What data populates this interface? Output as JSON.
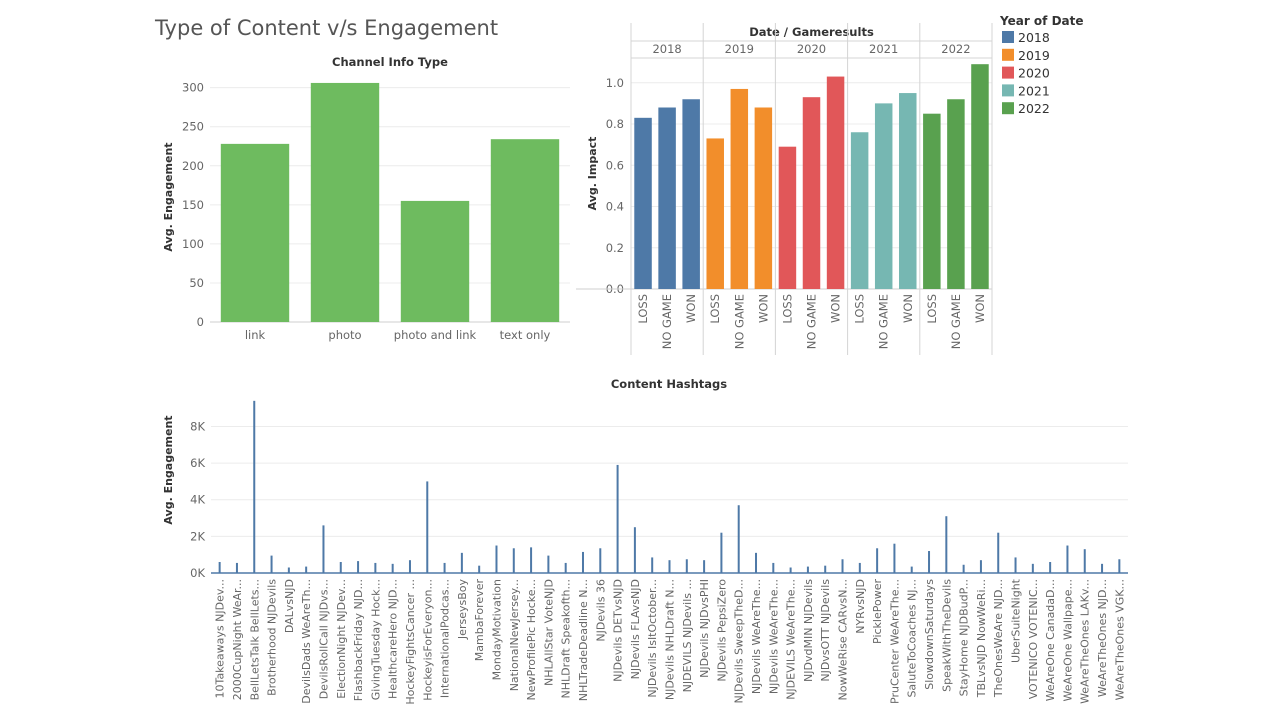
{
  "dashboard": {
    "title": "Type of Content v/s Engagement"
  },
  "chart_data": [
    {
      "id": "channel",
      "type": "bar",
      "title": "Channel Info Type",
      "ylabel": "Avg. Engagement",
      "xlabel": "",
      "categories": [
        "link",
        "photo",
        "photo and link",
        "text only"
      ],
      "values": [
        228,
        306,
        155,
        234
      ],
      "ylim": [
        0,
        320
      ],
      "yticks": [
        0,
        50,
        100,
        150,
        200,
        250,
        300
      ],
      "color": "#6ebb5f",
      "grid": true
    },
    {
      "id": "gameresults",
      "type": "bar",
      "title": "Date / Gameresults",
      "ylabel": "Avg. Impact",
      "ylim": [
        0,
        1.12
      ],
      "yticks": [
        0.0,
        0.2,
        0.4,
        0.6,
        0.8,
        1.0
      ],
      "grid": true,
      "legend_position": "right",
      "legend_title": "Year of Date",
      "groups": [
        {
          "year": "2018",
          "color": "#4e79a7",
          "categories": [
            "LOSS",
            "NO GAME",
            "WON"
          ],
          "values": [
            0.83,
            0.88,
            0.92
          ]
        },
        {
          "year": "2019",
          "color": "#f28e2b",
          "categories": [
            "LOSS",
            "NO GAME",
            "WON"
          ],
          "values": [
            0.73,
            0.97,
            0.88
          ]
        },
        {
          "year": "2020",
          "color": "#e15759",
          "categories": [
            "LOSS",
            "NO GAME",
            "WON"
          ],
          "values": [
            0.69,
            0.93,
            1.03
          ]
        },
        {
          "year": "2021",
          "color": "#76b7b2",
          "categories": [
            "LOSS",
            "NO GAME",
            "WON"
          ],
          "values": [
            0.76,
            0.9,
            0.95
          ]
        },
        {
          "year": "2022",
          "color": "#59a14f",
          "categories": [
            "LOSS",
            "NO GAME",
            "WON"
          ],
          "values": [
            0.85,
            0.92,
            1.09
          ]
        }
      ]
    },
    {
      "id": "hashtags",
      "type": "bar",
      "title": "Content Hashtags",
      "ylabel": "Avg. Engagement",
      "color": "#4e79a7",
      "ylim": [
        0,
        9500
      ],
      "yticks": [
        0,
        2000,
        4000,
        6000,
        8000
      ],
      "ytick_labels": [
        "0K",
        "2K",
        "4K",
        "6K",
        "8K"
      ],
      "grid": true,
      "categories": [
        "10Takeaways NJDev...",
        "2000CupNight WeAr...",
        "BellLetsTalk BellLets...",
        "Brotherhood NJDevils",
        "DALvsNJD",
        "DevilsDads WeAreTh...",
        "DevilsRollCall NJDvs...",
        "ElectionNight NJDev...",
        "FlashbackFriday NJD...",
        "GivingTuesday Hock...",
        "HealthcareHero NJD...",
        "HockeyFightsCancer ...",
        "HockeyisForEveryon...",
        "InternationalPodcas...",
        "JerseysBoy",
        "MambaForever",
        "MondayMotivation",
        "NationalNewJersey...",
        "NewProfilePic Hocke...",
        "NHLAllStar VoteNJD",
        "NHLDraft Speakofth...",
        "NHLTradeDeadline N...",
        "NJDevils 36",
        "NJDevils DETvsNJD",
        "NJDevils FLAvsNJD",
        "NJDevils IsItOctober...",
        "NJDevils NHLDraft N...",
        "NJDEVILS NJDevils ...",
        "NJDevils NJDvsPHI",
        "NJDevils PepsiZero",
        "NJDevils SweepTheD...",
        "NJDevils WeAreThe...",
        "NJDevils WeAreThe...",
        "NJDEVILS WeAreThe...",
        "NJDvdMIN NJDevils",
        "NJDvsOTT NJDevils",
        "NowWeRise CARvsN...",
        "NYRvsNJD",
        "PicklePower",
        "PruCenter WeAreThe...",
        "SaluteToCoaches NJ...",
        "SlowdownSaturdays",
        "SpeakWithTheDevils",
        "StayHome NJDBudP...",
        "TBLvsNJD NowWeRi...",
        "TheOnesWeAre NJD...",
        "UberSuiteNight",
        "VOTENICO VOTENIC...",
        "WeAreOne CanadaD...",
        "WeAreOne Wallpape...",
        "WeAreTheOnes LAKv...",
        "WeAreTheOnes NJD...",
        "WeAreTheOnes VGK..."
      ],
      "values": [
        600,
        550,
        9400,
        950,
        300,
        350,
        2600,
        600,
        650,
        550,
        500,
        700,
        5000,
        550,
        1100,
        400,
        1500,
        1350,
        1400,
        950,
        550,
        1150,
        1350,
        5900,
        2500,
        850,
        700,
        750,
        700,
        2200,
        3700,
        1100,
        550,
        300,
        350,
        400,
        750,
        550,
        1350,
        1600,
        350,
        1200,
        3100,
        450,
        700,
        2200,
        850,
        500,
        600,
        1500,
        1300,
        500,
        750
      ]
    }
  ],
  "legend": {
    "title": "Year of Date",
    "items": [
      {
        "label": "2018",
        "color": "#4e79a7"
      },
      {
        "label": "2019",
        "color": "#f28e2b"
      },
      {
        "label": "2020",
        "color": "#e15759"
      },
      {
        "label": "2021",
        "color": "#76b7b2"
      },
      {
        "label": "2022",
        "color": "#59a14f"
      }
    ]
  }
}
